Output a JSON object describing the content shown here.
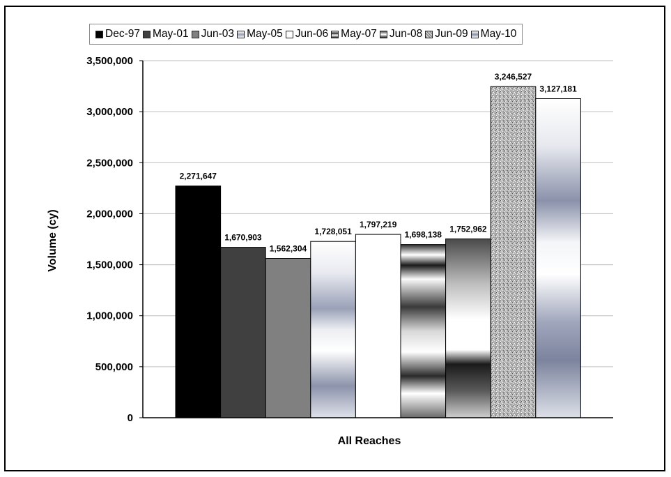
{
  "chart_data": {
    "type": "bar",
    "categories": [
      "All Reaches"
    ],
    "series": [
      {
        "name": "Dec-97",
        "values": [
          2271647
        ],
        "label": "2,271,647",
        "fill": "dec97"
      },
      {
        "name": "May-01",
        "values": [
          1670903
        ],
        "label": "1,670,903",
        "fill": "may01"
      },
      {
        "name": "Jun-03",
        "values": [
          1562304
        ],
        "label": "1,562,304",
        "fill": "jun03"
      },
      {
        "name": "May-05",
        "values": [
          1728051
        ],
        "label": "1,728,051",
        "fill": "may05"
      },
      {
        "name": "Jun-06",
        "values": [
          1797219
        ],
        "label": "1,797,219",
        "fill": "jun06"
      },
      {
        "name": "May-07",
        "values": [
          1698138
        ],
        "label": "1,698,138",
        "fill": "may07"
      },
      {
        "name": "Jun-08",
        "values": [
          1752962
        ],
        "label": "1,752,962",
        "fill": "jun08"
      },
      {
        "name": "Jun-09",
        "values": [
          3246527
        ],
        "label": "3,246,527",
        "fill": "jun09"
      },
      {
        "name": "May-10",
        "values": [
          3127181
        ],
        "label": "3,127,181",
        "fill": "may10"
      }
    ],
    "title": "",
    "xlabel": "All Reaches",
    "ylabel": "Volume (cy)",
    "ylim": [
      0,
      3500000
    ],
    "yticks": [
      0,
      500000,
      1000000,
      1500000,
      2000000,
      2500000,
      3000000,
      3500000
    ],
    "ytick_labels": [
      "0",
      "500,000",
      "1,000,000",
      "1,500,000",
      "2,000,000",
      "2,500,000",
      "3,000,000",
      "3,500,000"
    ],
    "grid": "horizontal",
    "legend": "top"
  }
}
